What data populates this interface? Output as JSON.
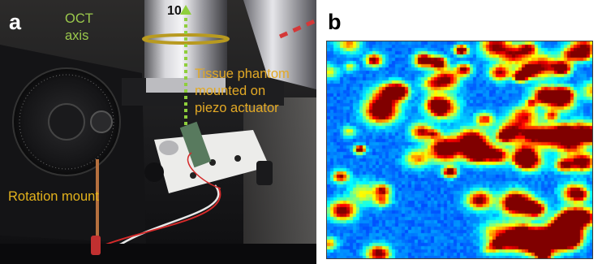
{
  "panel_a": {
    "letter": "a",
    "oct_axis_label": [
      "OCT",
      "axis"
    ],
    "objective_engraving": "10",
    "phantom_label": [
      "Tissue phantom",
      "mounted on",
      "piezo actuator"
    ],
    "rotation_label": "Rotation mount",
    "colors": {
      "oct_label": "#9bc94c",
      "phantom_label": "#e3a925",
      "rotation_label": "#e3b21c",
      "dashed_axis": "#8fcf3c",
      "background": "#1a1a1c"
    }
  },
  "panel_b": {
    "letter": "b",
    "colormap": "jet",
    "colors": {
      "base": "#2a40c8",
      "peak": "#8b0000"
    }
  }
}
